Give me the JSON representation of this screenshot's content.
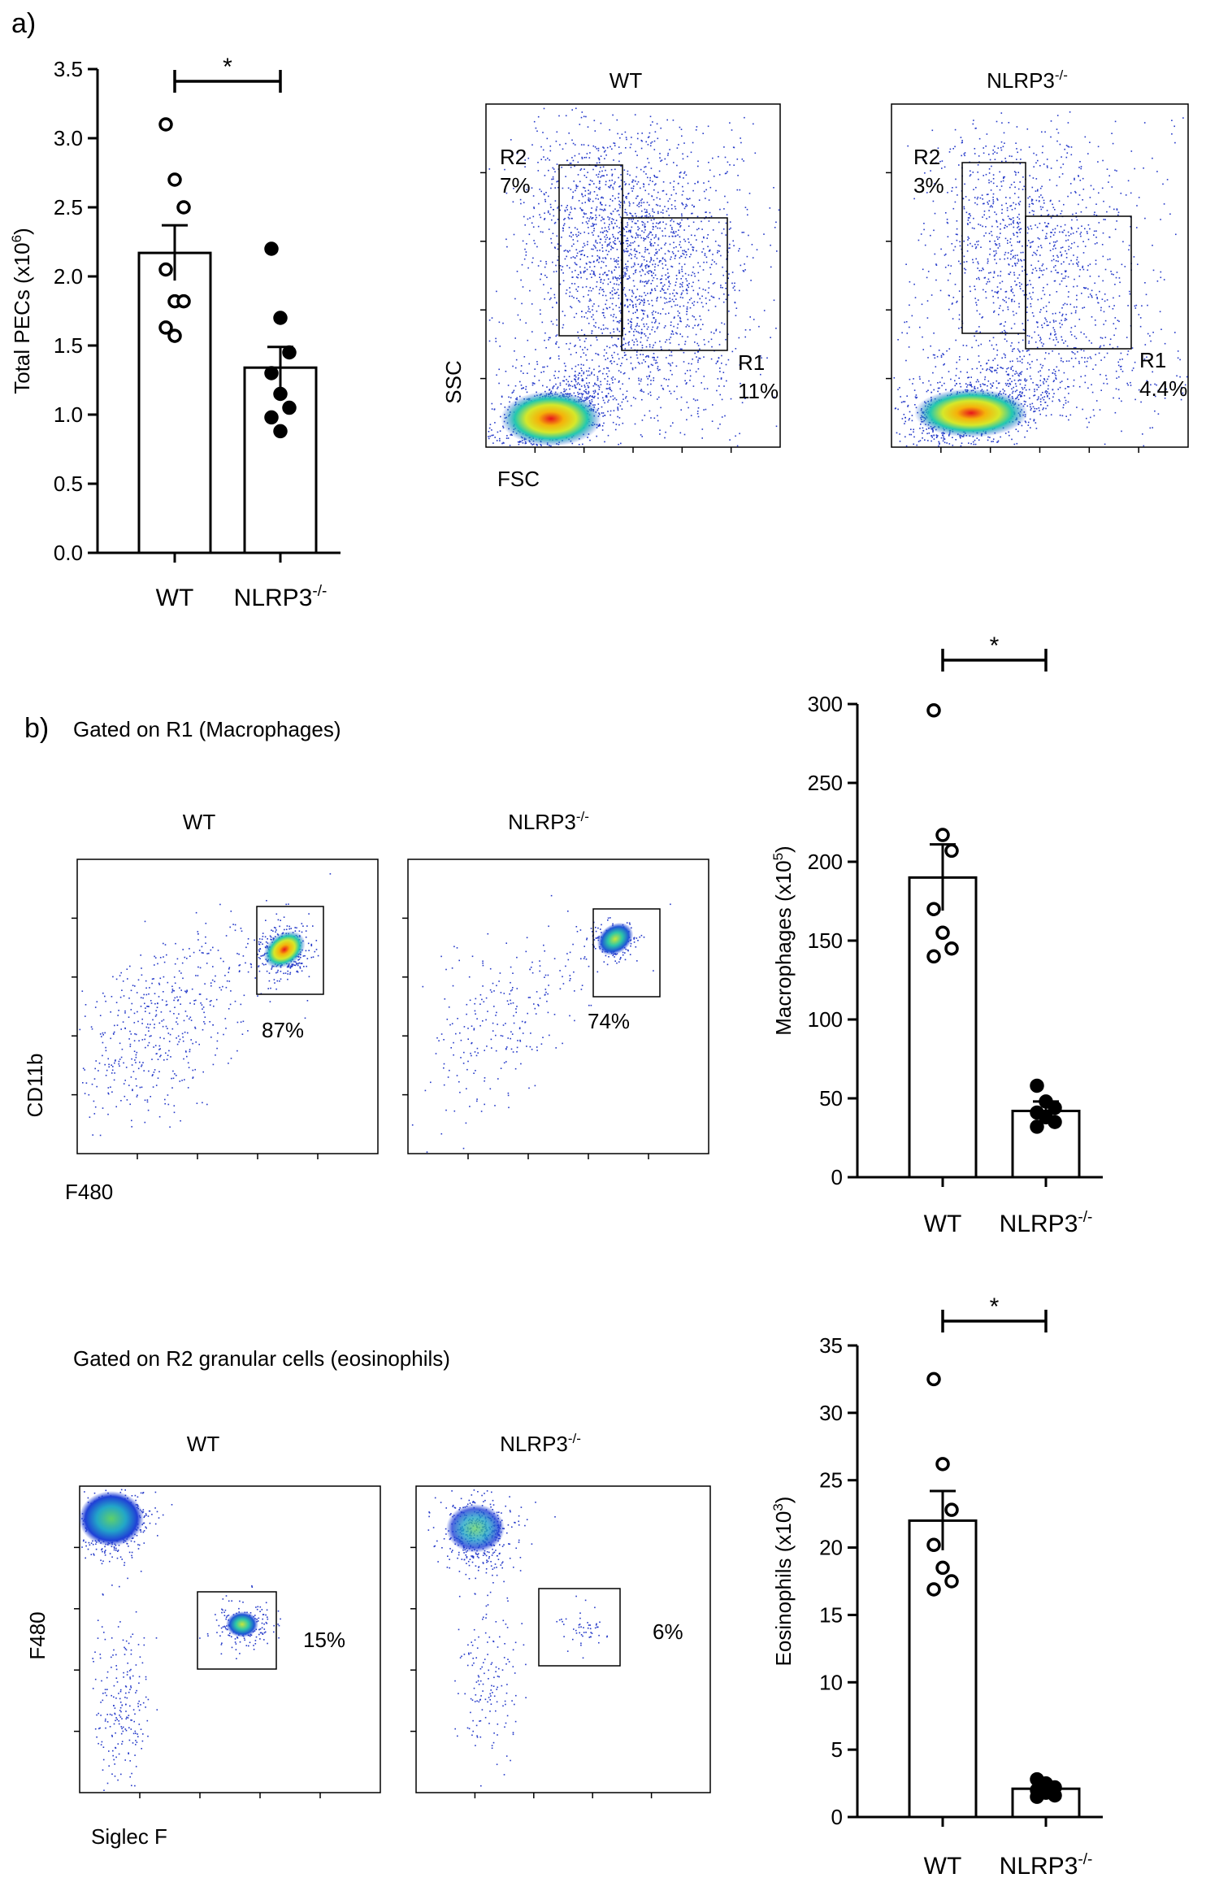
{
  "panels": {
    "a": {
      "label": "a)",
      "flow": {
        "wt": {
          "title": "WT",
          "r2": {
            "name": "R2",
            "pct": "7%"
          },
          "r1": {
            "name": "R1",
            "pct": "11%"
          }
        },
        "ko": {
          "title": "NLRP3",
          "title_sup": "-/-",
          "r2": {
            "name": "R2",
            "pct": "3%"
          },
          "r1": {
            "name": "R1",
            "pct": "4.4%"
          }
        },
        "xlabel": "FSC",
        "ylabel": "SSC"
      }
    },
    "b": {
      "label": "b)",
      "mac": {
        "heading": "Gated on R1 (Macrophages)",
        "wt": {
          "title": "WT",
          "pct": "87%"
        },
        "ko": {
          "title": "NLRP3",
          "title_sup": "-/-",
          "pct": "74%"
        },
        "xlabel": "F480",
        "ylabel": "CD11b"
      },
      "eos": {
        "heading": "Gated on R2 granular cells (eosinophils)",
        "wt": {
          "title": "WT",
          "pct": "15%"
        },
        "ko": {
          "title": "NLRP3",
          "title_sup": "-/-",
          "pct": "6%"
        },
        "xlabel": "Siglec F",
        "ylabel": "F480"
      }
    }
  },
  "chart_data": [
    {
      "id": "pecs",
      "type": "bar",
      "categories": [
        "WT",
        "NLRP3-/-"
      ],
      "category_labels": [
        {
          "main": "WT",
          "sup": ""
        },
        {
          "main": "NLRP3",
          "sup": "-/-"
        }
      ],
      "values": [
        2.17,
        1.34
      ],
      "errors": [
        0.2,
        0.15
      ],
      "points": [
        [
          3.1,
          2.7,
          2.5,
          2.05,
          1.82,
          1.82,
          1.63,
          1.57
        ],
        [
          2.2,
          1.7,
          1.45,
          1.3,
          1.15,
          1.05,
          0.98,
          0.88
        ]
      ],
      "point_style": [
        "open",
        "filled"
      ],
      "ylabel": "Total PECs (x10",
      "ylabel_sup": "6",
      "ylabel_end": ")",
      "ylim": [
        0,
        3.5
      ],
      "yticks": [
        0.0,
        0.5,
        1.0,
        1.5,
        2.0,
        2.5,
        3.0,
        3.5
      ],
      "ytick_labels": [
        "0.0",
        "0.5",
        "1.0",
        "1.5",
        "2.0",
        "2.5",
        "3.0",
        "3.5"
      ],
      "significance": "*"
    },
    {
      "id": "macrophages",
      "type": "bar",
      "categories": [
        "WT",
        "NLRP3-/-"
      ],
      "category_labels": [
        {
          "main": "WT",
          "sup": ""
        },
        {
          "main": "NLRP3",
          "sup": "-/-"
        }
      ],
      "values": [
        190,
        42
      ],
      "errors": [
        21,
        6
      ],
      "points": [
        [
          296,
          217,
          207,
          170,
          155,
          145,
          140
        ],
        [
          58,
          48,
          44,
          41,
          38,
          35,
          32
        ]
      ],
      "point_style": [
        "open",
        "filled"
      ],
      "ylabel": "Macrophages (x10",
      "ylabel_sup": "5",
      "ylabel_end": ")",
      "ylim": [
        0,
        300
      ],
      "yticks": [
        0,
        50,
        100,
        150,
        200,
        250,
        300
      ],
      "ytick_labels": [
        "0",
        "50",
        "100",
        "150",
        "200",
        "250",
        "300"
      ],
      "significance": "*"
    },
    {
      "id": "eosinophils",
      "type": "bar",
      "categories": [
        "WT",
        "NLRP3-/-"
      ],
      "category_labels": [
        {
          "main": "WT",
          "sup": ""
        },
        {
          "main": "NLRP3",
          "sup": "-/-"
        }
      ],
      "values": [
        22,
        2.1
      ],
      "errors": [
        2.2,
        0.3
      ],
      "points": [
        [
          32.5,
          26.2,
          22.8,
          20.2,
          18.5,
          17.5,
          16.9
        ],
        [
          2.8,
          2.5,
          2.2,
          2.0,
          1.8,
          1.6,
          1.5
        ]
      ],
      "point_style": [
        "open",
        "filled"
      ],
      "ylabel": "Eosinophils (x10",
      "ylabel_sup": "3",
      "ylabel_end": ")",
      "ylim": [
        0,
        35
      ],
      "yticks": [
        0,
        5,
        10,
        15,
        20,
        25,
        30,
        35
      ],
      "ytick_labels": [
        "0",
        "5",
        "10",
        "15",
        "20",
        "25",
        "30",
        "35"
      ],
      "significance": "*"
    }
  ]
}
